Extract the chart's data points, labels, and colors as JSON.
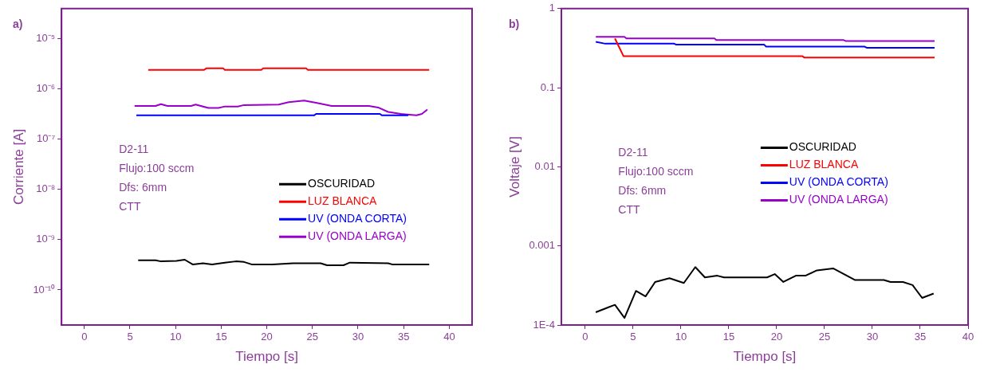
{
  "chart_data": [
    {
      "type": "line",
      "title": "a)",
      "xlabel": "Tiempo [s]",
      "ylabel": "Corriente [A]",
      "log": "y",
      "grid": false,
      "legend": "right",
      "marker": "none",
      "line_style": "solid",
      "xlim": [
        -2.5,
        42.5
      ],
      "xticks": [
        0,
        5,
        10,
        15,
        20,
        25,
        30,
        35,
        40
      ],
      "ylim": [
        2e-11,
        4e-05
      ],
      "yticks": [
        {
          "value": 1e-10,
          "label": "10⁻¹⁰"
        },
        {
          "value": 1e-09,
          "label": "10⁻⁹"
        },
        {
          "value": 1e-08,
          "label": "10⁻⁸"
        },
        {
          "value": 1e-07,
          "label": "10⁻⁷"
        },
        {
          "value": 1e-06,
          "label": "10⁻⁶"
        },
        {
          "value": 1e-05,
          "label": "10⁻⁵"
        }
      ],
      "annotations": [
        "D2-11",
        "Flujo:100 sccm",
        "Dfs: 6mm",
        "CTT"
      ],
      "series": [
        {
          "name": "OSCURIDAD",
          "color": "#000000",
          "x": [
            5.9,
            7.8,
            8.4,
            10.1,
            11,
            11.9,
            13,
            14,
            15.4,
            16.6,
            17.5,
            18.4,
            20.6,
            22.9,
            25.9,
            26.6,
            28.4,
            29.1,
            33.3,
            33.8,
            37.8
          ],
          "values": [
            3.9e-10,
            3.9e-10,
            3.7e-10,
            3.8e-10,
            4e-10,
            3.2e-10,
            3.4e-10,
            3.2e-10,
            3.5e-10,
            3.7e-10,
            3.6e-10,
            3.2e-10,
            3.2e-10,
            3.4e-10,
            3.4e-10,
            3.1e-10,
            3.1e-10,
            3.5e-10,
            3.4e-10,
            3.2e-10,
            3.2e-10
          ]
        },
        {
          "name": "LUZ BLANCA",
          "color": "#ff0000",
          "x": [
            7.0,
            13.1,
            13.4,
            15.2,
            15.4,
            19.4,
            19.6,
            24.3,
            24.5,
            37.8
          ],
          "values": [
            2.4e-06,
            2.4e-06,
            2.6e-06,
            2.6e-06,
            2.4e-06,
            2.4e-06,
            2.6e-06,
            2.6e-06,
            2.4e-06,
            2.4e-06
          ]
        },
        {
          "name": "UV (ONDA CORTA)",
          "color": "#0000ff",
          "x": [
            5.7,
            25.2,
            25.4,
            32.4,
            32.6,
            35.5
          ],
          "values": [
            3e-07,
            3e-07,
            3.2e-07,
            3.2e-07,
            3e-07,
            3e-07
          ]
        },
        {
          "name": "UV (ONDA LARGA)",
          "color": "#9900cc",
          "x": [
            5.5,
            7.8,
            8.4,
            9.1,
            11.7,
            12.2,
            13.6,
            14.7,
            15.4,
            16.8,
            17.5,
            21.3,
            22.4,
            24.1,
            25.5,
            27.1,
            31.2,
            32.2,
            33.3,
            34.7,
            36.4,
            37,
            37.6
          ],
          "values": [
            4.6e-07,
            4.6e-07,
            5e-07,
            4.6e-07,
            4.6e-07,
            4.9e-07,
            4.2e-07,
            4.2e-07,
            4.5e-07,
            4.5e-07,
            4.8e-07,
            4.9e-07,
            5.5e-07,
            5.9e-07,
            5.3e-07,
            4.6e-07,
            4.6e-07,
            4.3e-07,
            3.5e-07,
            3.2e-07,
            3e-07,
            3.2e-07,
            3.9e-07
          ]
        }
      ]
    },
    {
      "type": "line",
      "title": "b)",
      "xlabel": "Tiempo [s]",
      "ylabel": "Voltaje [V]",
      "log": "y",
      "grid": false,
      "legend": "right",
      "marker": "none",
      "line_style": "solid",
      "xlim": [
        -2.5,
        40
      ],
      "xticks": [
        0,
        5,
        10,
        15,
        20,
        25,
        30,
        35,
        40
      ],
      "ylim": [
        0.0001,
        1
      ],
      "yticks": [
        {
          "value": 0.0001,
          "label": "1E-4"
        },
        0.001,
        0.01,
        0.1,
        1
      ],
      "annotations": [
        "D2-11",
        "Flujo:100 sccm",
        "Dfs: 6mm",
        "CTT"
      ],
      "series": [
        {
          "name": "OSCURIDAD",
          "color": "#000000",
          "x": [
            1.1,
            2.0,
            3.1,
            4.1,
            5.3,
            6.3,
            7.3,
            8.8,
            10.3,
            11.5,
            12.5,
            13.8,
            14.5,
            19,
            19.8,
            20.7,
            22,
            23,
            24.2,
            25.9,
            28.2,
            31.2,
            31.9,
            33.2,
            34.2,
            35.2,
            36.4
          ],
          "values": [
            0.000145,
            0.00016,
            0.00018,
            0.000123,
            0.00027,
            0.00023,
            0.00035,
            0.00039,
            0.00034,
            0.00054,
            0.0004,
            0.00042,
            0.0004,
            0.0004,
            0.00044,
            0.00035,
            0.00042,
            0.00042,
            0.00049,
            0.00052,
            0.00037,
            0.00037,
            0.00035,
            0.00035,
            0.00032,
            0.00022,
            0.00025
          ]
        },
        {
          "name": "LUZ BLANCA",
          "color": "#ff0000",
          "x": [
            3.1,
            4.0,
            22.7,
            22.9,
            36.5
          ],
          "values": [
            0.42,
            0.25,
            0.25,
            0.24,
            0.24
          ]
        },
        {
          "name": "UV (ONDA CORTA)",
          "color": "#0000ff",
          "x": [
            1.1,
            2.1,
            9.3,
            9.5,
            18.7,
            18.9,
            29.2,
            29.4,
            36.5
          ],
          "values": [
            0.38,
            0.36,
            0.36,
            0.35,
            0.35,
            0.33,
            0.33,
            0.32,
            0.32
          ]
        },
        {
          "name": "UV (ONDA LARGA)",
          "color": "#9900cc",
          "x": [
            1.1,
            4.1,
            4.3,
            13.5,
            13.7,
            27,
            27.2,
            36.5
          ],
          "values": [
            0.44,
            0.44,
            0.42,
            0.42,
            0.4,
            0.4,
            0.39,
            0.39
          ]
        }
      ]
    }
  ]
}
